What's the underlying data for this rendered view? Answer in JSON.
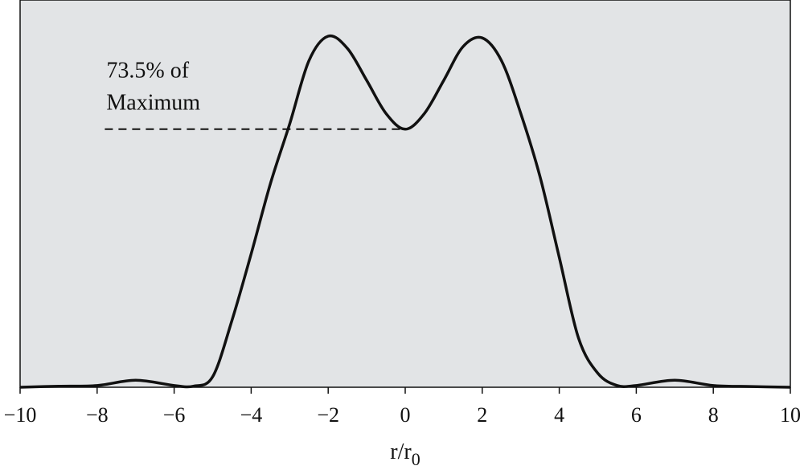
{
  "chart_data": {
    "type": "line",
    "xlabel": "r/r",
    "xlabel_sub": "0",
    "x": [
      -10,
      -9,
      -8,
      -7,
      -6,
      -5.5,
      -5,
      -4.5,
      -4,
      -3.5,
      -3,
      -2.5,
      -2,
      -1.5,
      -1,
      -0.5,
      0,
      0.5,
      1,
      1.5,
      2,
      2.5,
      3,
      3.5,
      4,
      4.5,
      5,
      5.5,
      6,
      7,
      8,
      9,
      10
    ],
    "series": [
      {
        "color": "#111111",
        "values": [
          0,
          0.003,
          0.005,
          0.02,
          0.005,
          0.003,
          0.03,
          0.19,
          0.38,
          0.58,
          0.75,
          0.93,
          1.0,
          0.965,
          0.874,
          0.78,
          0.735,
          0.78,
          0.874,
          0.97,
          0.995,
          0.93,
          0.78,
          0.6,
          0.37,
          0.14,
          0.04,
          0.005,
          0.005,
          0.02,
          0.005,
          0.002,
          0
        ]
      }
    ],
    "xlim": [
      -10,
      10
    ],
    "ylim": [
      0,
      1.103
    ],
    "xticks": [
      {
        "value": -10,
        "label": "−10"
      },
      {
        "value": -8,
        "label": "−8"
      },
      {
        "value": -6,
        "label": "−6"
      },
      {
        "value": -4,
        "label": "−4"
      },
      {
        "value": -2,
        "label": "−2"
      },
      0,
      2,
      4,
      6,
      8,
      10
    ],
    "background": "#e2e4e6",
    "annotation": {
      "lines": [
        "73.5% of",
        "Maximum"
      ],
      "level": 0.735,
      "x_start": -7.8,
      "x_end": 0
    }
  }
}
